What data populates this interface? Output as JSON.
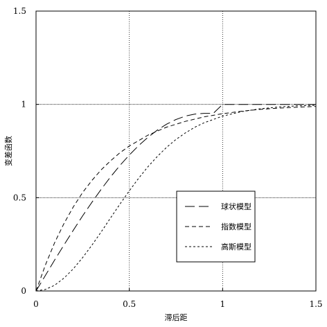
{
  "chart_data": {
    "type": "line",
    "title": "",
    "xlabel": "滞后距",
    "ylabel": "变差函数",
    "xlim": [
      0,
      1.5
    ],
    "ylim": [
      0,
      1.5
    ],
    "x_ticks": [
      {
        "value": 0,
        "label": "0"
      },
      {
        "value": 0.5,
        "label": "0.5"
      },
      {
        "value": 1,
        "label": "1"
      },
      {
        "value": 1.5,
        "label": "1.5"
      }
    ],
    "y_ticks": [
      {
        "value": 0,
        "label": "0"
      },
      {
        "value": 0.5,
        "label": "0.5"
      },
      {
        "value": 1,
        "label": "1"
      },
      {
        "value": 1.5,
        "label": "1.5"
      }
    ],
    "grid_x": [
      0.5,
      1.0
    ],
    "grid_y": [
      0.5,
      1.0
    ],
    "legend_position": "lower-right",
    "series": [
      {
        "name": "球状模型",
        "dash": "long-dash",
        "x": [
          0,
          0.05,
          0.1,
          0.15,
          0.2,
          0.25,
          0.3,
          0.35,
          0.4,
          0.45,
          0.5,
          0.55,
          0.6,
          0.65,
          0.7,
          0.75,
          0.8,
          0.85,
          0.9,
          0.95,
          1.0,
          1.1,
          1.2,
          1.3,
          1.4,
          1.5
        ],
        "y": [
          0,
          0.083,
          0.166,
          0.247,
          0.326,
          0.403,
          0.476,
          0.546,
          0.612,
          0.673,
          0.729,
          0.779,
          0.824,
          0.862,
          0.894,
          0.919,
          0.937,
          0.948,
          0.952,
          0.952,
          1.0,
          1.0,
          1.0,
          1.0,
          1.0,
          1.0
        ]
      },
      {
        "name": "指数模型",
        "dash": "short-dash",
        "x": [
          0,
          0.05,
          0.1,
          0.15,
          0.2,
          0.25,
          0.3,
          0.35,
          0.4,
          0.45,
          0.5,
          0.6,
          0.7,
          0.8,
          0.9,
          1.0,
          1.1,
          1.2,
          1.3,
          1.4,
          1.5
        ],
        "y": [
          0,
          0.139,
          0.259,
          0.362,
          0.451,
          0.528,
          0.593,
          0.65,
          0.698,
          0.741,
          0.777,
          0.835,
          0.878,
          0.909,
          0.933,
          0.95,
          0.963,
          0.973,
          0.98,
          0.985,
          0.989
        ]
      },
      {
        "name": "高斯模型",
        "dash": "dotted-dash",
        "x": [
          0,
          0.05,
          0.1,
          0.15,
          0.2,
          0.25,
          0.3,
          0.35,
          0.4,
          0.45,
          0.5,
          0.55,
          0.6,
          0.65,
          0.7,
          0.75,
          0.8,
          0.85,
          0.9,
          1.0,
          1.1,
          1.2,
          1.3,
          1.4,
          1.5
        ],
        "y": [
          0,
          0.008,
          0.031,
          0.069,
          0.119,
          0.179,
          0.246,
          0.318,
          0.392,
          0.466,
          0.537,
          0.604,
          0.666,
          0.721,
          0.77,
          0.812,
          0.847,
          0.877,
          0.901,
          0.937,
          0.961,
          0.976,
          0.986,
          0.992,
          0.995
        ]
      }
    ]
  }
}
